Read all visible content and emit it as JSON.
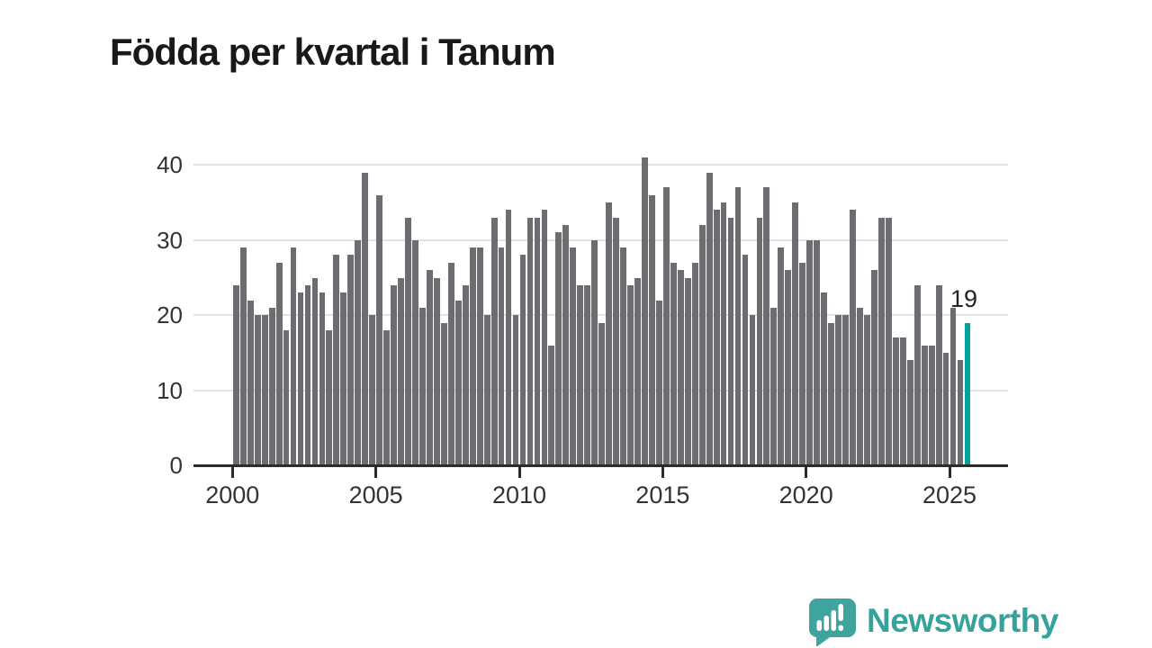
{
  "title": "Födda per kvartal i Tanum",
  "annotation": {
    "label": "19"
  },
  "y_axis": {
    "ticks": [
      0,
      10,
      20,
      30,
      40
    ]
  },
  "x_axis": {
    "tick_years": [
      2000,
      2005,
      2010,
      2015,
      2020,
      2025
    ]
  },
  "logo": {
    "name": "Newsworthy",
    "icon": "speech-bubble-bar-chart"
  },
  "colors": {
    "bar": "#6c6c71",
    "highlight": "#00a39c",
    "logo": "#3fa49e",
    "logo_text": "#35a29b",
    "gridline": "#e2e2e2",
    "axis": "#2b2b2b",
    "text": "#333333",
    "title": "#191919"
  },
  "chart_data": {
    "type": "bar",
    "title": "Födda per kvartal i Tanum",
    "frequency": "quarterly",
    "x_start": "2000 Q1",
    "x_end": "2025 Q3",
    "xlabel": "",
    "ylabel": "",
    "ylim": [
      0,
      42
    ],
    "grid": "horizontal",
    "y_gridlines": [
      10,
      20,
      30,
      40
    ],
    "x_tick_years": [
      2000,
      2005,
      2010,
      2015,
      2020,
      2025
    ],
    "highlight": {
      "index": 102,
      "label": "19"
    },
    "values": [
      24,
      29,
      22,
      20,
      20,
      21,
      27,
      18,
      29,
      23,
      24,
      25,
      23,
      18,
      28,
      23,
      28,
      30,
      39,
      20,
      36,
      18,
      24,
      25,
      33,
      30,
      21,
      26,
      25,
      19,
      27,
      22,
      24,
      29,
      29,
      20,
      33,
      29,
      34,
      20,
      28,
      33,
      33,
      34,
      16,
      31,
      32,
      29,
      24,
      24,
      30,
      19,
      35,
      33,
      29,
      24,
      25,
      41,
      36,
      22,
      37,
      27,
      26,
      25,
      27,
      32,
      39,
      34,
      35,
      33,
      37,
      28,
      20,
      33,
      37,
      21,
      29,
      26,
      35,
      27,
      30,
      30,
      23,
      19,
      20,
      20,
      34,
      21,
      20,
      26,
      33,
      33,
      17,
      17,
      14,
      24,
      16,
      16,
      24,
      15,
      21,
      14,
      19
    ]
  }
}
